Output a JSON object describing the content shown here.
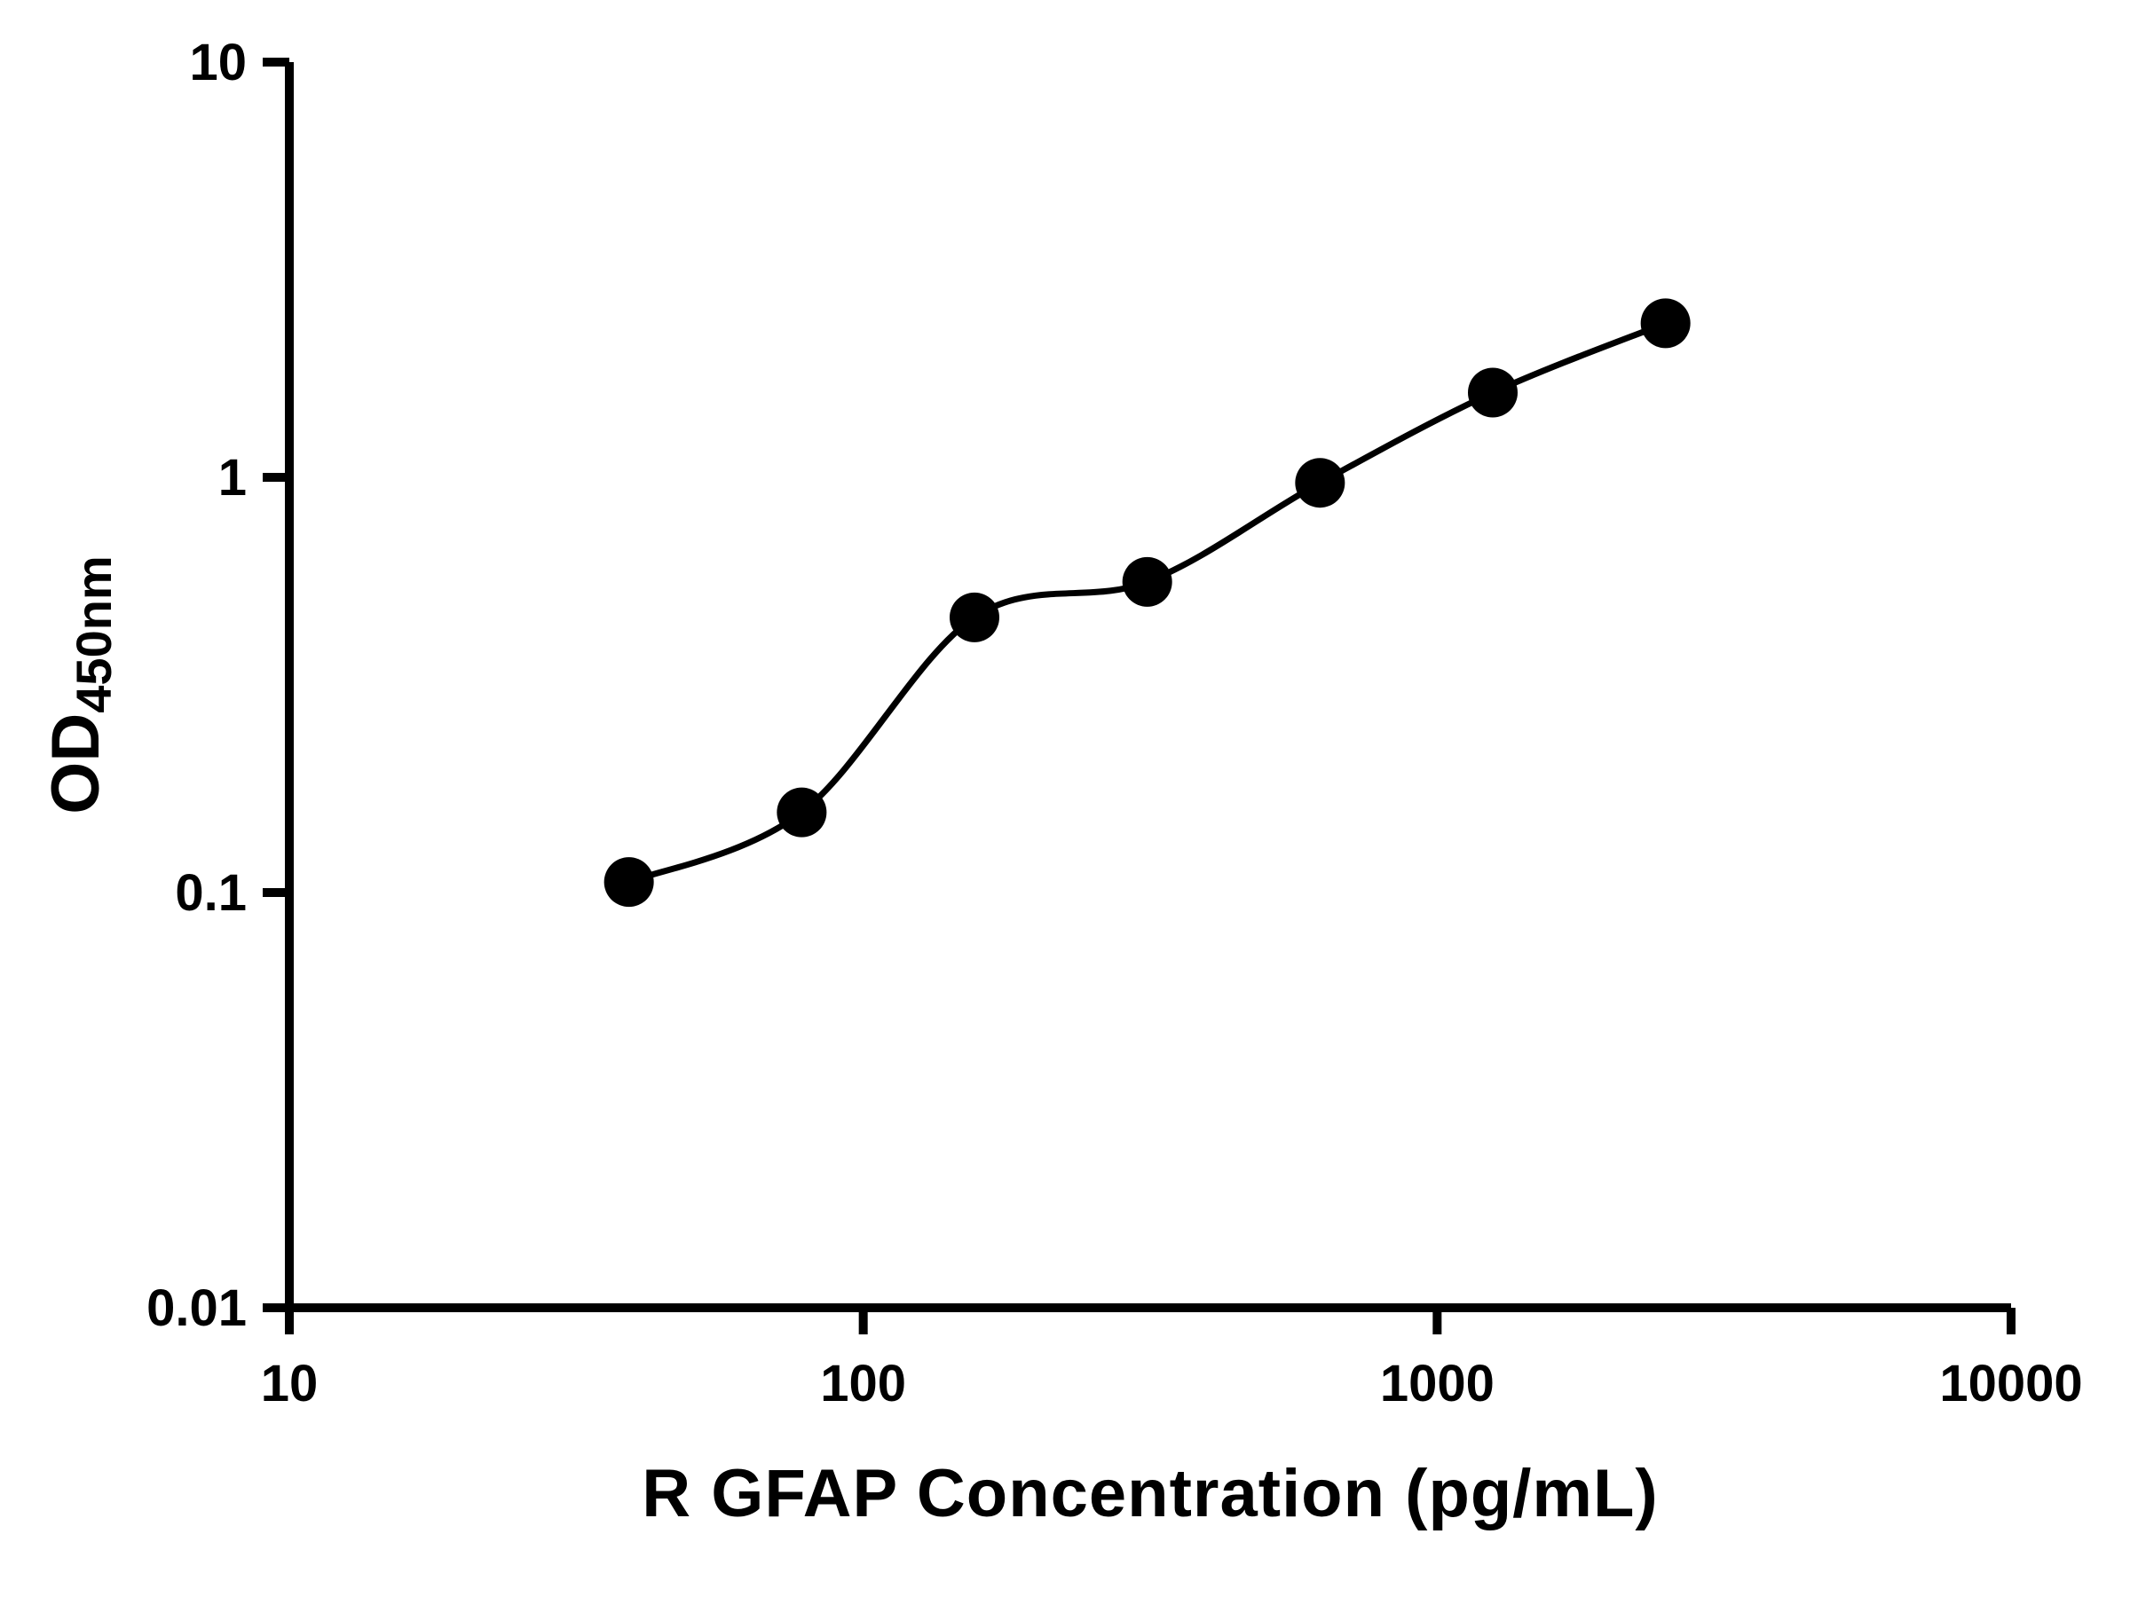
{
  "chart_data": {
    "type": "scatter",
    "title": "",
    "xlabel": "R GFAP Concentration (pg/mL)",
    "ylabel_base": "OD",
    "ylabel_sub": "450nm",
    "xscale": "log",
    "yscale": "log",
    "xlim": [
      10,
      10000
    ],
    "ylim": [
      0.01,
      10
    ],
    "x_ticks": [
      10,
      100,
      1000,
      10000
    ],
    "y_ticks": [
      10,
      1,
      0.1,
      0.01
    ],
    "x_tick_labels": [
      "10",
      "100",
      "1000",
      "10000"
    ],
    "y_tick_labels": [
      "10",
      "1",
      "0.1",
      "0.01"
    ],
    "x": [
      39.06,
      78.13,
      156.25,
      312.5,
      625,
      1250,
      2500
    ],
    "y": [
      0.106,
      0.156,
      0.46,
      0.56,
      0.97,
      1.6,
      2.35
    ],
    "marker_color": "#000000",
    "line_color": "#000000",
    "axis_color": "#000000",
    "grid": "off",
    "legend": "none"
  }
}
